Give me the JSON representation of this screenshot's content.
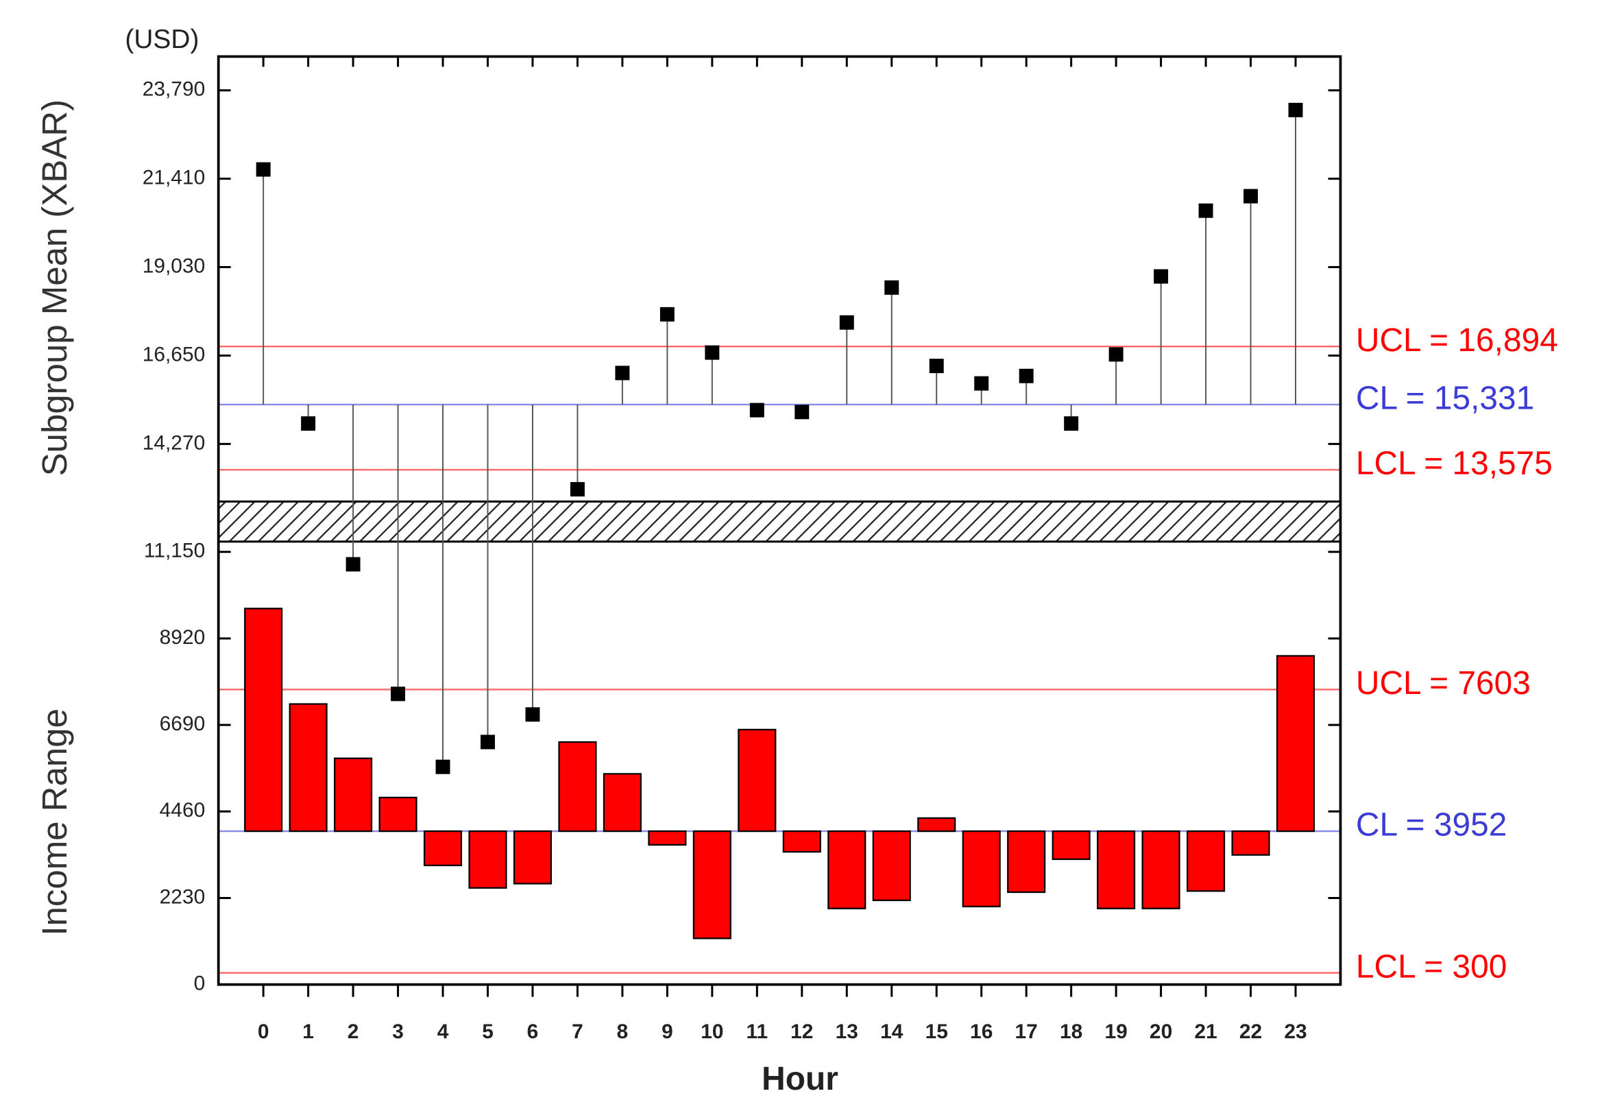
{
  "chart_data": {
    "type": "control",
    "unit_label": "(USD)",
    "ylabel_top": "Subgroup Mean (XBAR)",
    "ylabel_bottom": "Income Range",
    "xlabel": "Hour",
    "categories": [
      "0",
      "1",
      "2",
      "3",
      "4",
      "5",
      "6",
      "7",
      "8",
      "9",
      "10",
      "11",
      "12",
      "13",
      "14",
      "15",
      "16",
      "17",
      "18",
      "19",
      "20",
      "21",
      "22",
      "23"
    ],
    "ylim": [
      0,
      24700
    ],
    "ybreak": [
      11415,
      12720
    ],
    "yticks": [
      0,
      2230,
      4460,
      6690,
      8920,
      {
        "value": 11150,
        "label": "11,150"
      },
      {
        "value": 14270,
        "label": "14,270"
      },
      {
        "value": 16650,
        "label": "16,650"
      },
      {
        "value": 19030,
        "label": "19,030"
      },
      {
        "value": 21410,
        "label": "21,410"
      },
      {
        "value": 23790,
        "label": "23,790"
      }
    ],
    "series": [
      {
        "color": "#000000",
        "marker": "square",
        "values": [
          21660,
          14820,
          10830,
          7490,
          5610,
          6250,
          6960,
          13050,
          16180,
          17760,
          16730,
          15180,
          15130,
          17540,
          18480,
          16370,
          15900,
          16100,
          14820,
          16680,
          18780,
          20550,
          20940,
          23260
        ]
      },
      {
        "color": "#ff0000",
        "marker": "bar",
        "values": [
          9690,
          7230,
          5830,
          4820,
          3070,
          2490,
          2600,
          6250,
          5430,
          3600,
          1190,
          6570,
          3420,
          1960,
          2170,
          4290,
          2010,
          2380,
          3230,
          1960,
          1960,
          2410,
          3340,
          8470
        ]
      }
    ],
    "control_lines": [
      {
        "label": "UCL = 16,894",
        "value": 16894,
        "color": "#ff0000"
      },
      {
        "label": "CL = 15,331",
        "value": 15331,
        "color": "#3b3bd6"
      },
      {
        "label": "LCL = 13,575",
        "value": 13575,
        "color": "#ff0000"
      },
      {
        "label": "UCL = 7603",
        "value": 7603,
        "color": "#ff0000"
      },
      {
        "label": "CL = 3952",
        "value": 3952,
        "color": "#3b3bd6"
      },
      {
        "label": "LCL = 300",
        "value": 300,
        "color": "#ff0000"
      }
    ]
  }
}
